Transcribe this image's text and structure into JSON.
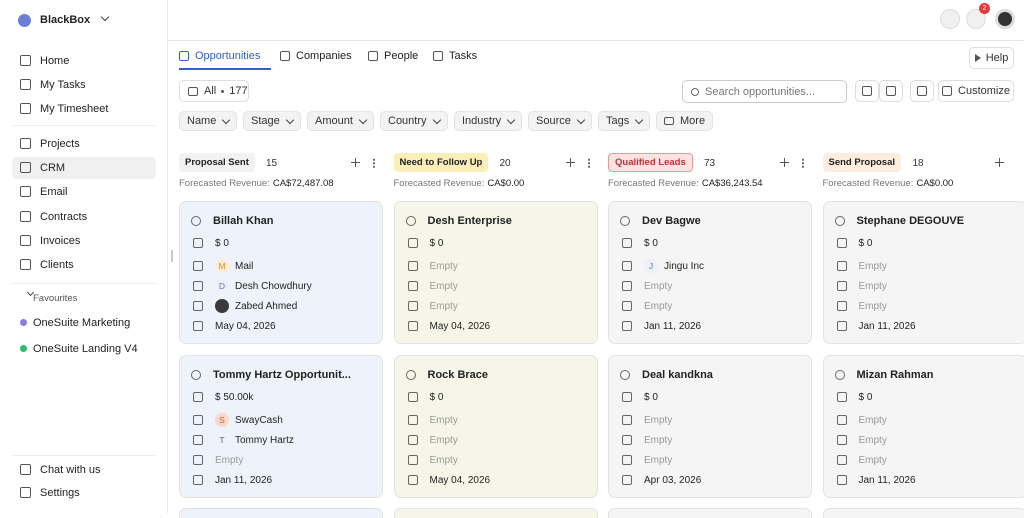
{
  "sidebar": {
    "workspace": "BlackBox",
    "nav": [
      "Home",
      "My Tasks",
      "My Timesheet",
      "Projects",
      "CRM",
      "Email",
      "Contracts",
      "Invoices",
      "Clients"
    ],
    "favourites_title": "Favourites",
    "favourites": [
      "OneSuite Marketing",
      "OneSuite Landing V4"
    ],
    "footer": [
      "Chat with us",
      "Settings"
    ]
  },
  "topbar": {
    "notifications": 2
  },
  "tabs": {
    "items": [
      "Opportunities",
      "Companies",
      "People",
      "Tasks"
    ],
    "help": "Help"
  },
  "toolbar": {
    "all_label": "All",
    "count": 177,
    "search_placeholder": "Search opportunities...",
    "customize": "Customize"
  },
  "filters": [
    "Name",
    "Stage",
    "Amount",
    "Country",
    "Industry",
    "Source",
    "Tags",
    "More"
  ],
  "columns": [
    {
      "title": "Proposal Sent",
      "count": 15,
      "revenue_label": "Forecasted Revenue:",
      "revenue": "CA$72,487.08",
      "cards": [
        {
          "name": "Billah Khan",
          "amount": "$ 0",
          "company_initial": "M",
          "company": "Mail",
          "contact_initial": "D",
          "contact": "Desh Chowdhury",
          "owner": "Zabed Ahmed",
          "date": "May 04, 2026"
        },
        {
          "name": "Tommy Hartz Opportunit...",
          "amount": "$ 50.00k",
          "company_initial": "S",
          "company": "SwayCash",
          "contact_initial": "T",
          "contact": "Tommy Hartz",
          "owner": "Empty",
          "date": "Jan 11, 2026"
        }
      ]
    },
    {
      "title": "Need to Follow Up",
      "count": 20,
      "revenue_label": "Forecasted Revenue:",
      "revenue": "CA$0.00",
      "cards": [
        {
          "name": "Desh Enterprise",
          "amount": "$ 0",
          "company": "Empty",
          "contact": "Empty",
          "owner": "Empty",
          "date": "May 04, 2026"
        },
        {
          "name": "Rock Brace",
          "amount": "$ 0",
          "company": "Empty",
          "contact": "Empty",
          "owner": "Empty",
          "date": "May 04, 2026"
        }
      ]
    },
    {
      "title": "Qualified Leads",
      "count": 73,
      "revenue_label": "Forecasted Revenue:",
      "revenue": "CA$36,243.54",
      "cards": [
        {
          "name": "Dev Bagwe",
          "amount": "$ 0",
          "company_initial": "J",
          "company": "Jingu Inc",
          "contact": "Empty",
          "owner": "Empty",
          "date": "Jan 11, 2026"
        },
        {
          "name": "Deal kandkna",
          "amount": "$ 0",
          "company": "Empty",
          "contact": "Empty",
          "owner": "Empty",
          "date": "Apr 03, 2026"
        }
      ]
    },
    {
      "title": "Send Proposal",
      "count": 18,
      "revenue_label": "Forecasted Revenue:",
      "revenue": "CA$0.00",
      "cards": [
        {
          "name": "Stephane DEGOUVE",
          "amount": "$ 0",
          "company": "Empty",
          "contact": "Empty",
          "owner": "Empty",
          "date": "Jan 11, 2026"
        },
        {
          "name": "Mizan Rahman",
          "amount": "$ 0",
          "company": "Empty",
          "contact": "Empty",
          "owner": "Empty",
          "date": "Jan 11, 2026"
        }
      ]
    }
  ]
}
